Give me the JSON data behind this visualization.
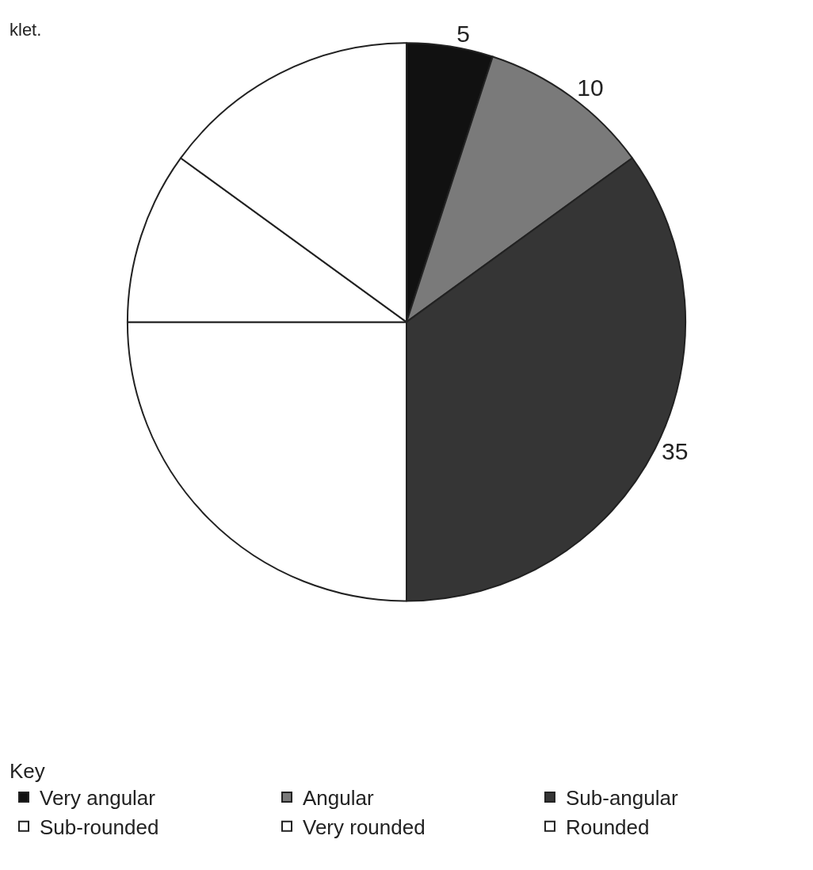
{
  "chart_data": {
    "type": "pie",
    "categories": [
      "Very angular",
      "Angular",
      "Sub-angular",
      "Sub-rounded",
      "Very rounded",
      "Rounded"
    ],
    "values": [
      5,
      10,
      35,
      25,
      10,
      15
    ],
    "colors": [
      "#111111",
      "#7a7a7a",
      "#353535",
      "#ffffff",
      "#ffffff",
      "#ffffff"
    ],
    "value_labels": [
      "5",
      "10",
      "35",
      null,
      null,
      null
    ],
    "legend_title": "Key",
    "legend": "bottom",
    "annotations": [
      "klet."
    ]
  }
}
